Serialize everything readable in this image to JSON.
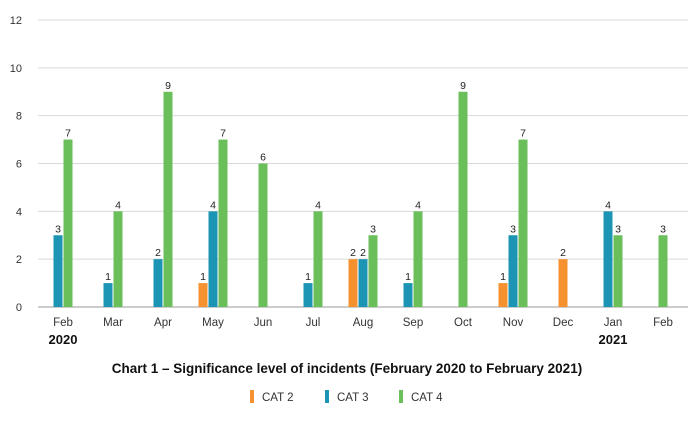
{
  "chart_data": {
    "type": "bar",
    "title": "Chart 1 – Significance level of incidents (February 2020 to February 2021)",
    "xlabel": "",
    "ylabel": "",
    "ylim": [
      0,
      12
    ],
    "yticks": [
      0,
      2,
      4,
      6,
      8,
      10,
      12
    ],
    "grid": true,
    "legend_position": "bottom-center",
    "categories": [
      "Feb",
      "Mar",
      "Apr",
      "May",
      "Jun",
      "Jul",
      "Aug",
      "Sep",
      "Oct",
      "Nov",
      "Dec",
      "Jan",
      "Feb"
    ],
    "year_labels": [
      {
        "category_index": 0,
        "label": "2020"
      },
      {
        "category_index": 11,
        "label": "2021"
      }
    ],
    "series": [
      {
        "name": "CAT 2",
        "color": "#f5922f",
        "values": [
          null,
          null,
          null,
          1,
          null,
          null,
          2,
          null,
          null,
          1,
          2,
          null,
          null
        ]
      },
      {
        "name": "CAT 3",
        "color": "#1b95b3",
        "values": [
          3,
          1,
          2,
          4,
          null,
          1,
          2,
          1,
          null,
          3,
          null,
          4,
          null
        ]
      },
      {
        "name": "CAT 4",
        "color": "#6abf5a",
        "values": [
          7,
          4,
          9,
          7,
          6,
          4,
          3,
          4,
          9,
          7,
          null,
          3,
          3
        ]
      }
    ]
  }
}
